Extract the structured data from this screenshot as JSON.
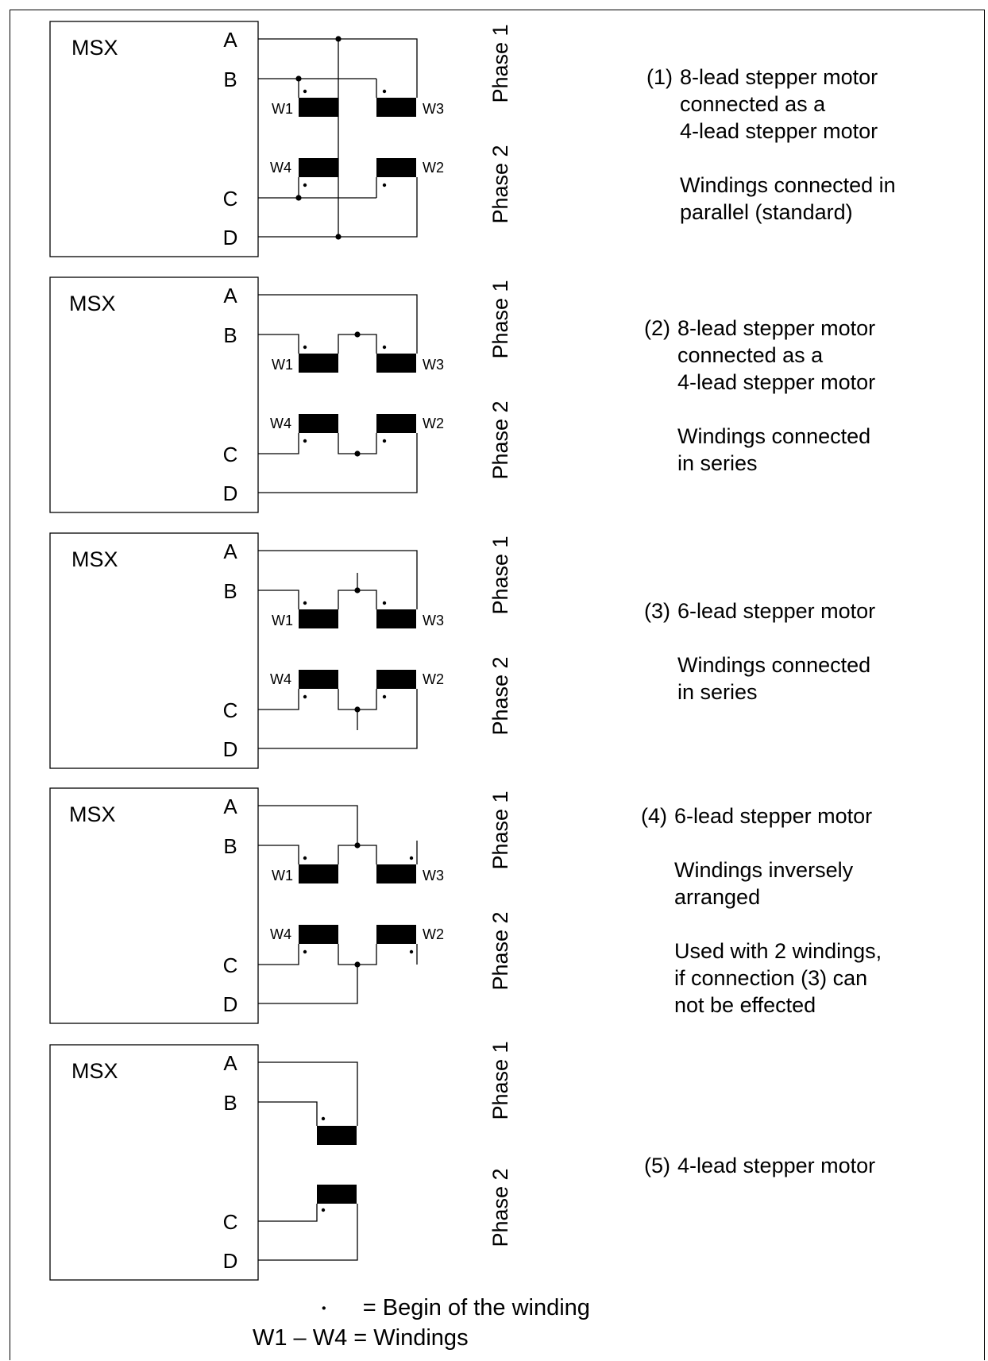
{
  "controller_label": "MSX",
  "terminals": [
    "A",
    "B",
    "C",
    "D"
  ],
  "phase_labels": [
    "Phase 1",
    "Phase 2"
  ],
  "winding_labels": [
    "W1",
    "W2",
    "W3",
    "W4"
  ],
  "panels": [
    {
      "number": "(1)",
      "lines": [
        "8-lead stepper motor",
        "connected as a",
        "4-lead stepper motor",
        "",
        "Windings connected in",
        "parallel (standard)"
      ]
    },
    {
      "number": "(2)",
      "lines": [
        "8-lead stepper motor",
        "connected as a",
        "4-lead stepper motor",
        "",
        "Windings connected",
        "in series"
      ]
    },
    {
      "number": "(3)",
      "lines": [
        "6-lead stepper motor",
        "",
        "Windings connected",
        "in series"
      ]
    },
    {
      "number": "(4)",
      "lines": [
        "6-lead stepper motor",
        "",
        "Windings inversely",
        "arranged",
        "",
        "Used with 2 windings,",
        "if connection (3) can",
        "not be effected"
      ]
    },
    {
      "number": "(5)",
      "lines": [
        "4-lead stepper motor"
      ]
    }
  ],
  "legend": {
    "dot_symbol": "•",
    "dot_text": "= Begin of the winding",
    "windings_text": "W1 – W4 = Windings"
  }
}
